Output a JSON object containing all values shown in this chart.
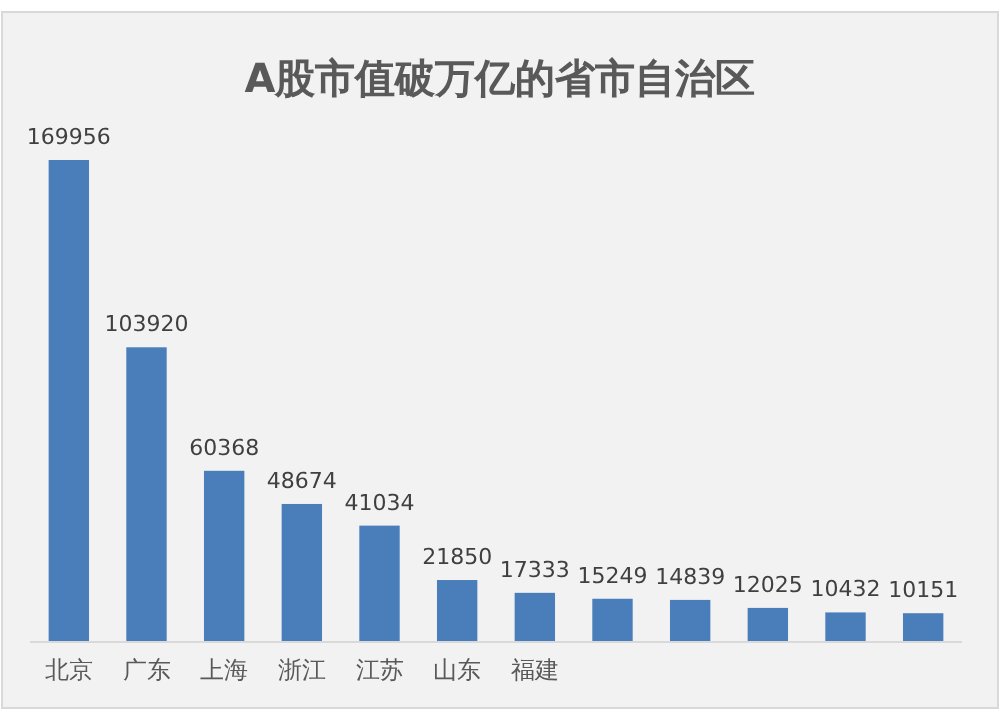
{
  "chart_data": {
    "type": "bar",
    "title": "A股市值破万亿的省市自治区",
    "categories": [
      "北京",
      "广东",
      "上海",
      "浙江",
      "江苏",
      "山东",
      "福建",
      null,
      null,
      null,
      null,
      null
    ],
    "values": [
      169956,
      103920,
      60368,
      48674,
      41034,
      21850,
      17333,
      15249,
      14839,
      12025,
      10432,
      10151
    ],
    "color": "#4a7ebb",
    "data_labels": true,
    "grid": false,
    "legend": false
  }
}
